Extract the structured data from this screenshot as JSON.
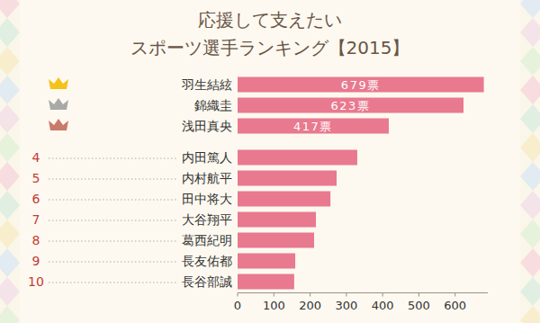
{
  "chart_data": {
    "type": "bar",
    "orientation": "horizontal",
    "title": "応援して支えたい",
    "subtitle": "スポーツ選手ランキング【2015】",
    "categories": [
      "羽生結絃",
      "錦織圭",
      "浅田真央",
      "内田篤人",
      "内村航平",
      "田中将大",
      "大谷翔平",
      "葛西紀明",
      "長友佑都",
      "長谷部誠"
    ],
    "ranks": [
      null,
      null,
      null,
      "4",
      "5",
      "6",
      "7",
      "8",
      "9",
      "10"
    ],
    "values": [
      679,
      623,
      417,
      330,
      273,
      256,
      216,
      211,
      159,
      156
    ],
    "value_labels": [
      "679票",
      "623票",
      "417票",
      null,
      null,
      null,
      null,
      null,
      null,
      null
    ],
    "data_labels": true,
    "color": "#e8798f",
    "xlim": [
      0,
      690
    ],
    "xticks": [
      0,
      100,
      200,
      300,
      400,
      500,
      600
    ],
    "grid": false,
    "tick_labels": "x"
  }
}
